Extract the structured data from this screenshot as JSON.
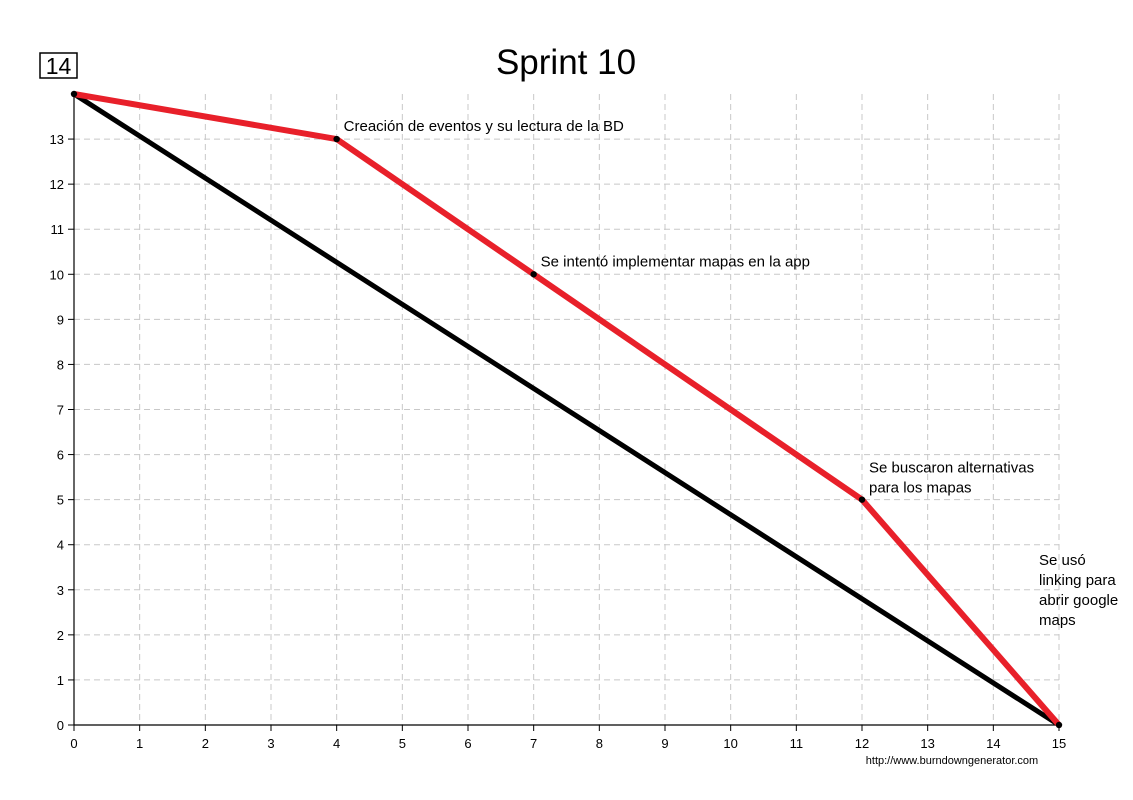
{
  "chart_data": {
    "type": "line",
    "title": "Sprint 10",
    "badge": "14",
    "credit": "http://www.burndowngenerator.com",
    "xlabel": "",
    "ylabel": "",
    "xlim": [
      0,
      15
    ],
    "ylim": [
      0,
      14
    ],
    "x_ticks": [
      0,
      1,
      2,
      3,
      4,
      5,
      6,
      7,
      8,
      9,
      10,
      11,
      12,
      13,
      14,
      15
    ],
    "y_ticks": [
      0,
      1,
      2,
      3,
      4,
      5,
      6,
      7,
      8,
      9,
      10,
      11,
      12,
      13
    ],
    "grid": true,
    "series": [
      {
        "role": "ideal",
        "color": "#000000",
        "x": [
          0,
          15
        ],
        "y": [
          14,
          0
        ]
      },
      {
        "role": "actual",
        "color": "#e8202a",
        "x": [
          0,
          4,
          7,
          12,
          15
        ],
        "y": [
          14,
          13,
          10,
          5,
          0
        ]
      }
    ],
    "annotations": [
      {
        "x": 4,
        "y": 13,
        "lines": [
          "Creación de eventos y su lectura de la BD"
        ]
      },
      {
        "x": 7,
        "y": 10,
        "lines": [
          "Se intentó implementar mapas en la app"
        ]
      },
      {
        "x": 12,
        "y": 5,
        "lines": [
          "Se buscaron alternativas",
          "para los mapas"
        ]
      },
      {
        "x": 15,
        "y": 0,
        "lines": [
          "Se usó",
          "linking para",
          "abrir google",
          "maps"
        ]
      }
    ]
  }
}
